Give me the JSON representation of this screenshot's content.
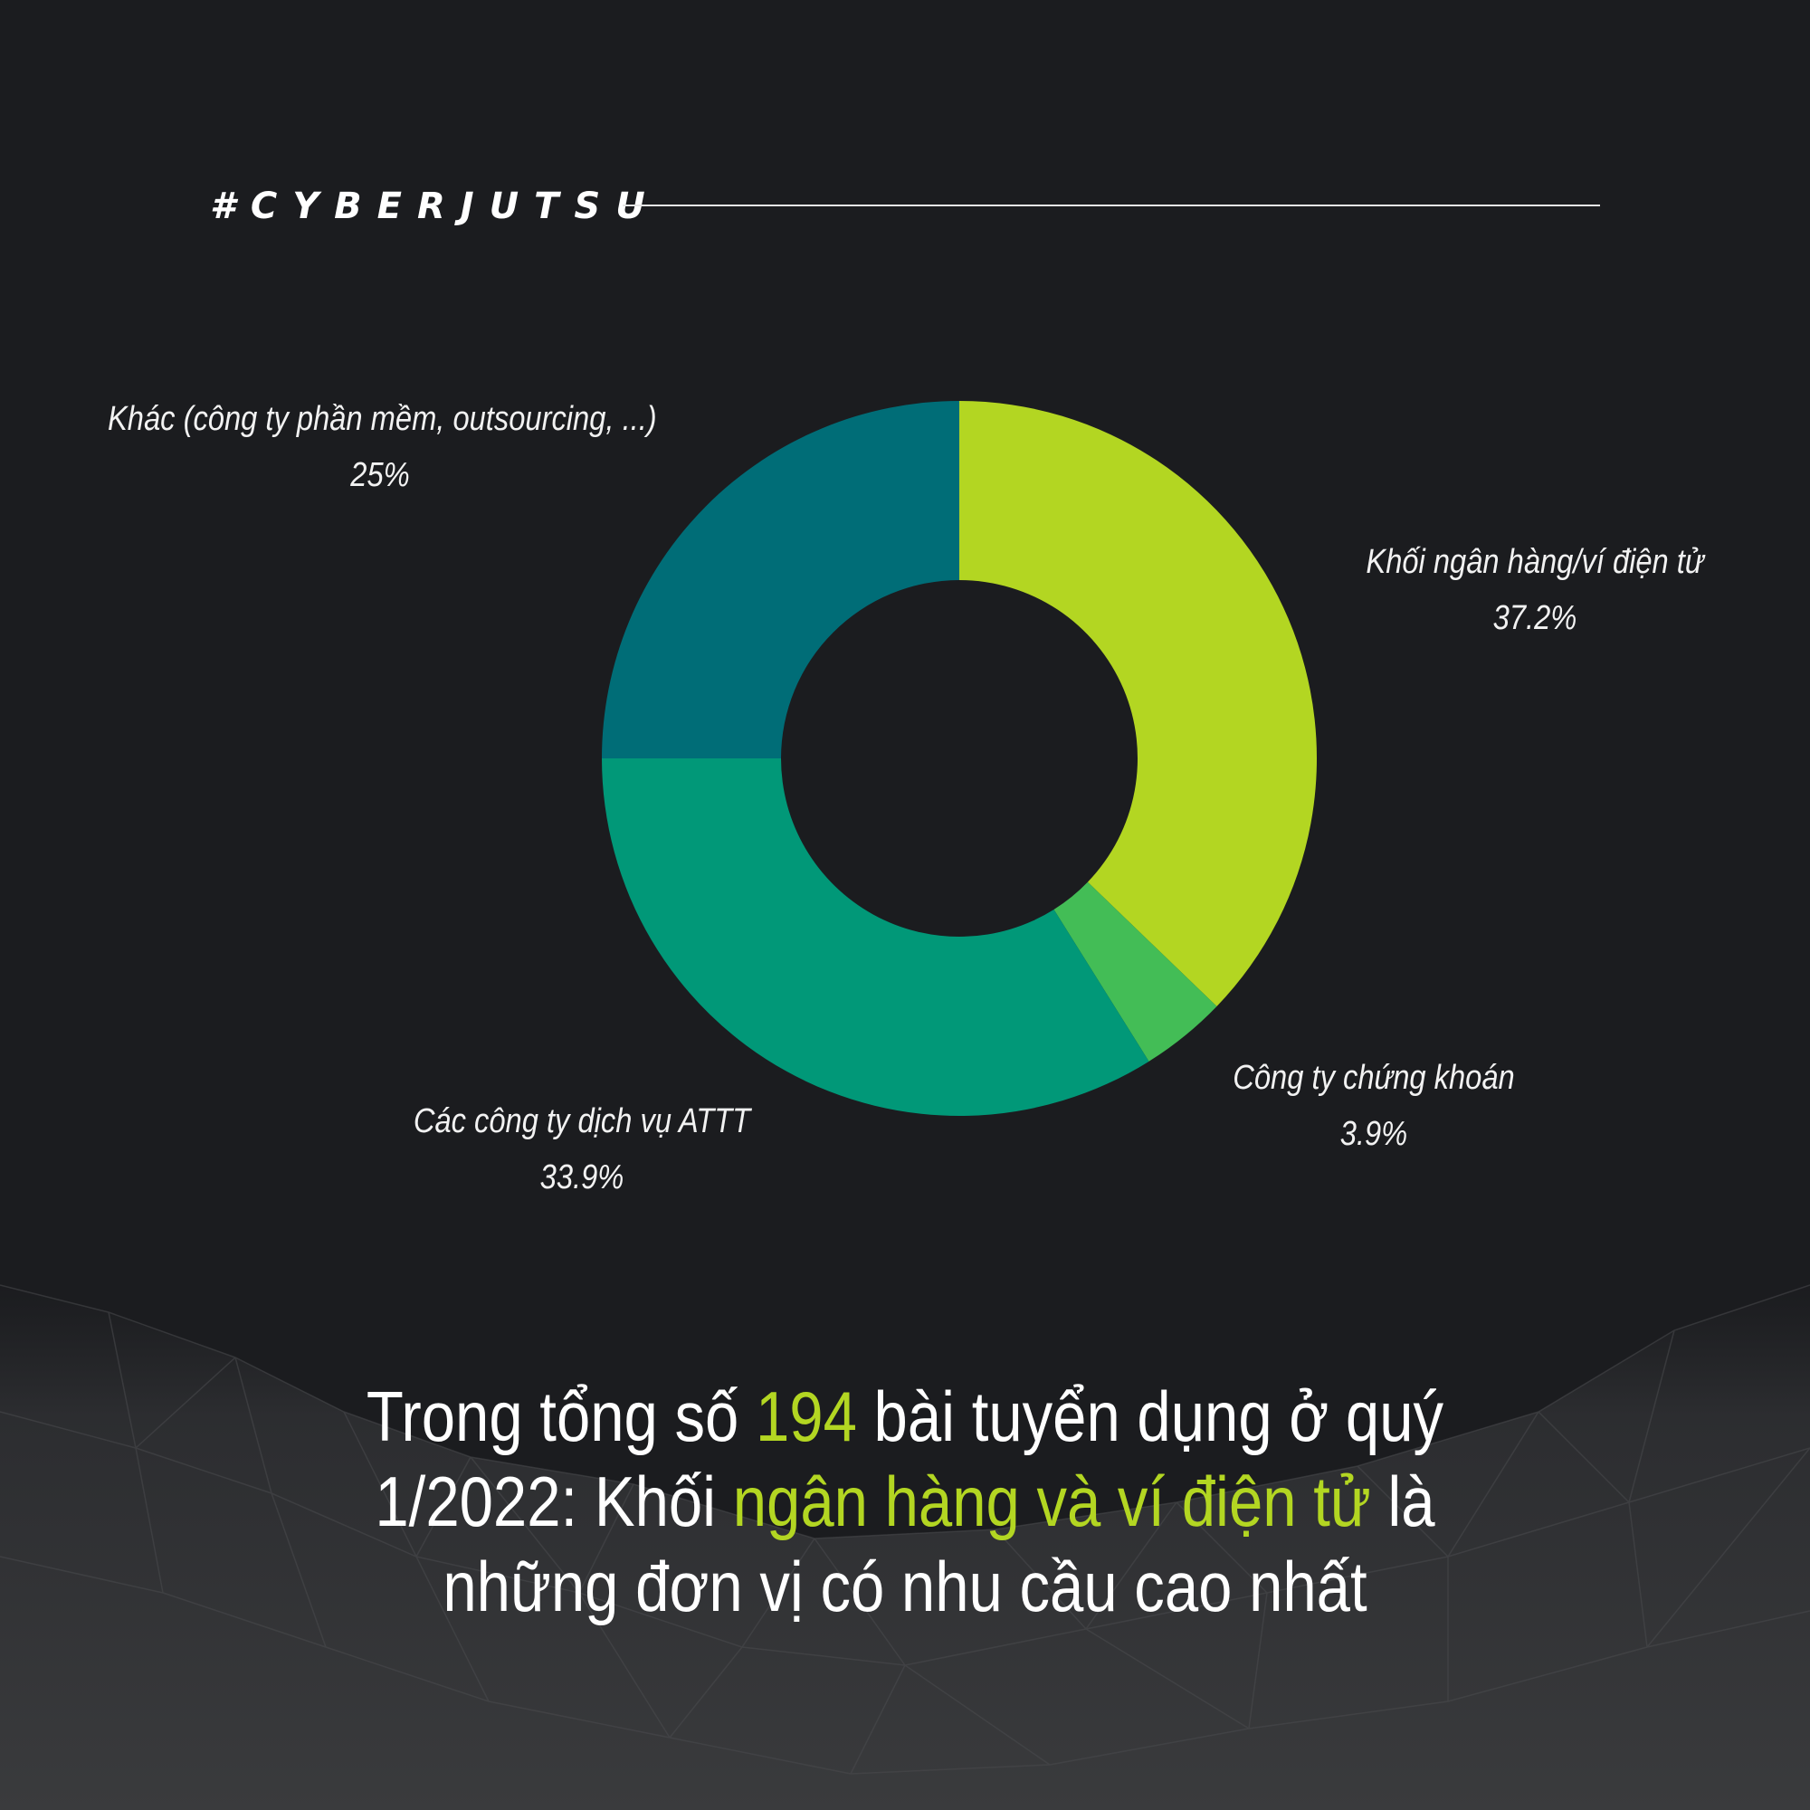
{
  "brand": {
    "tag": "#CYBERJUTSU"
  },
  "colors": {
    "background": "#1b1c1f",
    "accent": "#b3d622",
    "text": "#ffffff"
  },
  "chart_data": {
    "type": "pie",
    "donut": true,
    "start_angle_deg": 0,
    "direction": "clockwise",
    "slices": [
      {
        "label": "Khối ngân hàng/ví điện tử",
        "value": 37.2,
        "value_label": "37.2%",
        "color": "#b3d622"
      },
      {
        "label": "Công ty chứng khoán",
        "value": 3.9,
        "value_label": "3.9%",
        "color": "#43bd56"
      },
      {
        "label": "Các công ty dịch vụ ATTT",
        "value": 33.9,
        "value_label": "33.9%",
        "color": "#019878"
      },
      {
        "label": "Khác (công ty phần mềm, outsourcing, ...)",
        "value": 25,
        "value_label": "25%",
        "color": "#006d77"
      }
    ]
  },
  "caption": {
    "line1_pre": "Trong tổng số ",
    "line1_num": "194",
    "line1_post": " bài tuyển dụng ở quý",
    "line2_pre": "1/2022: Khối ",
    "line2_hl": "ngân hàng và ví điện tử",
    "line2_post": " là",
    "line3": "những đơn vị có nhu cầu cao nhất"
  }
}
